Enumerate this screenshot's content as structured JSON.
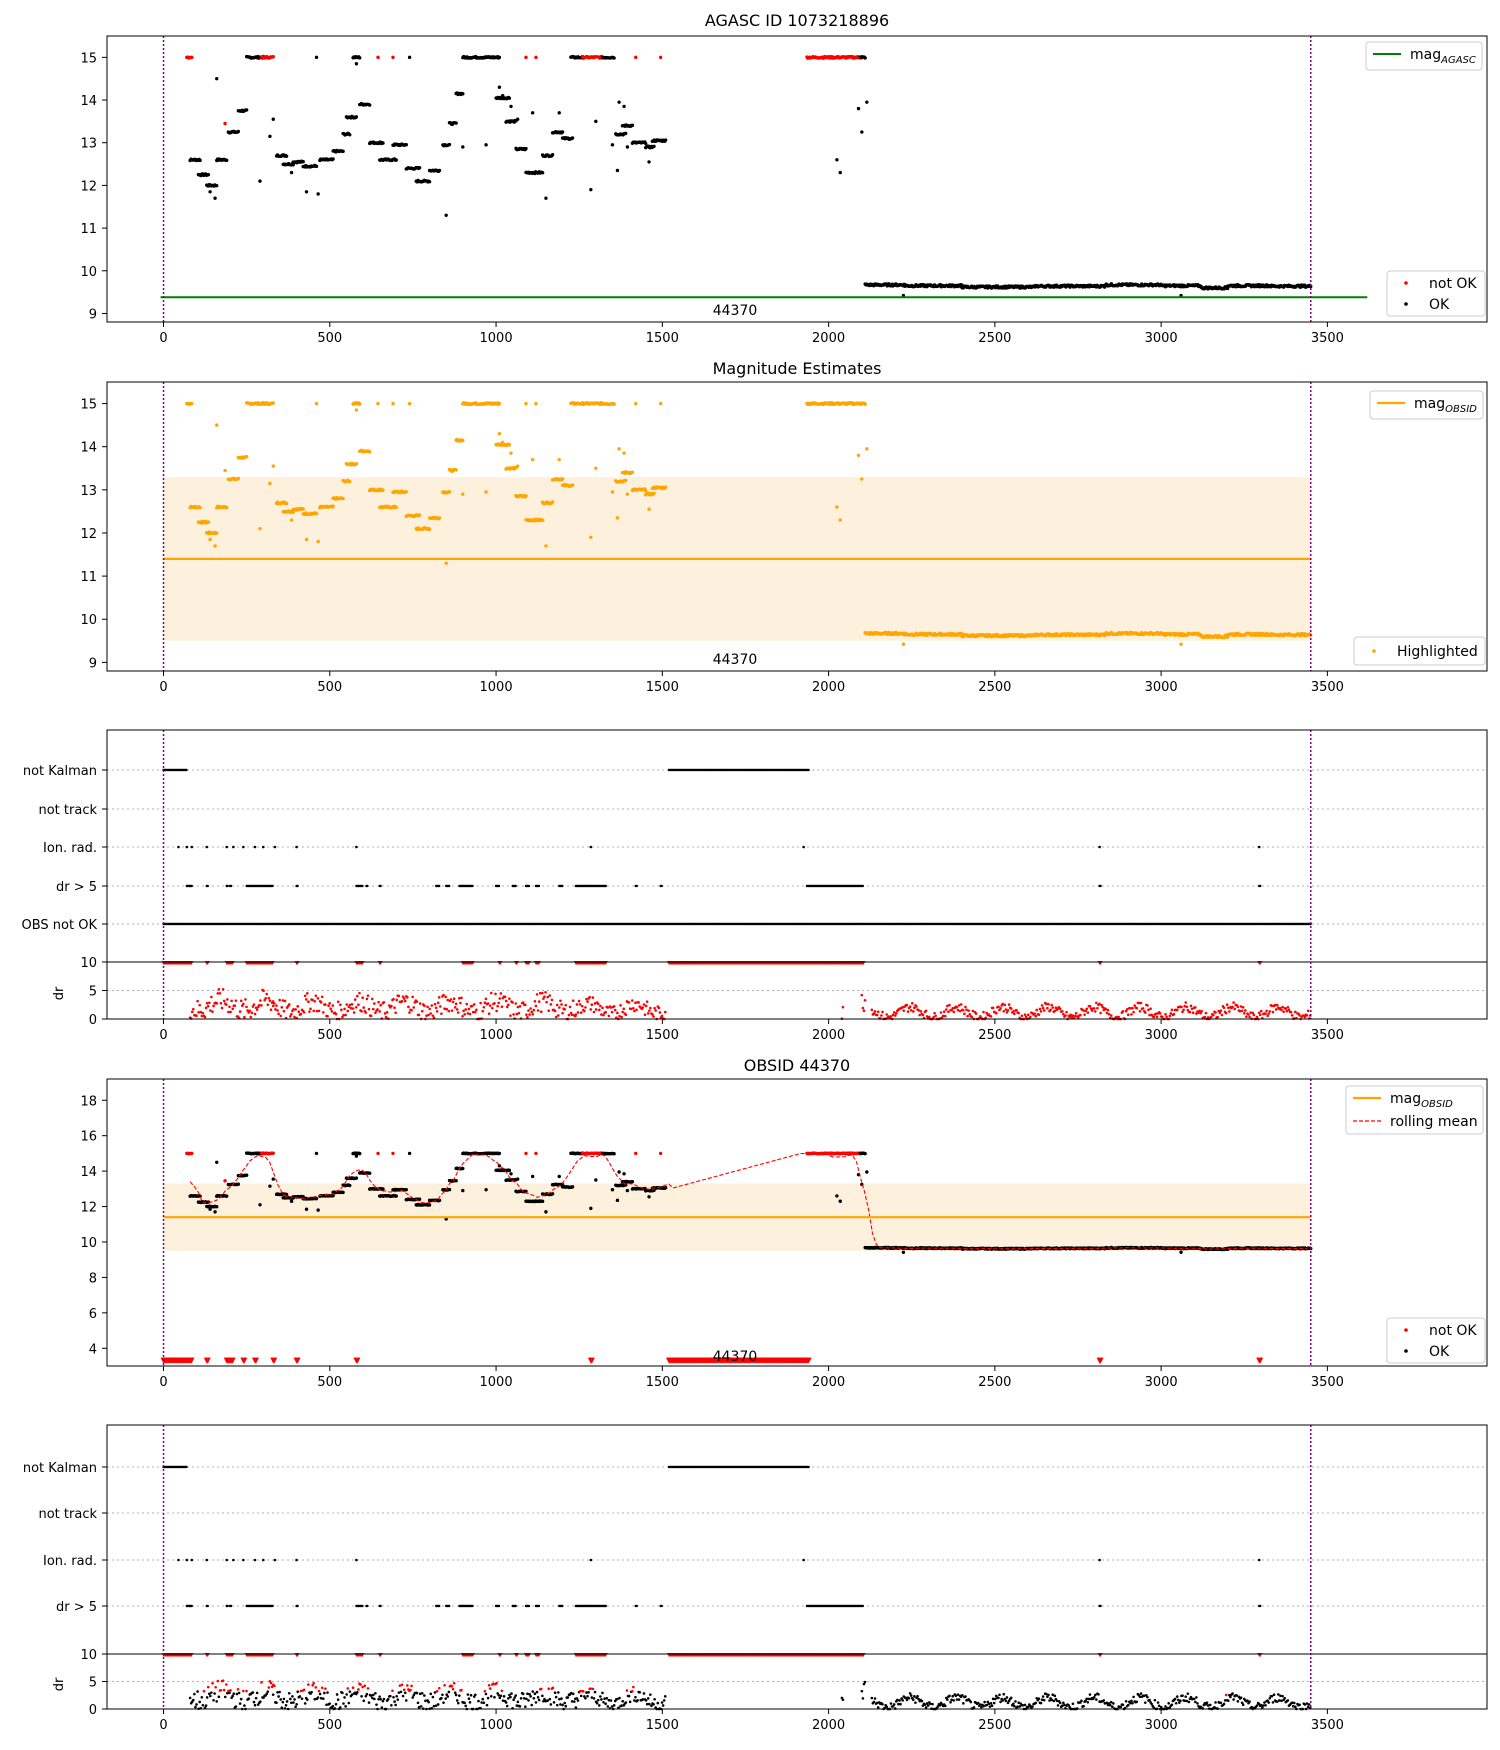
{
  "figure": {
    "panel1_title": "AGASC ID 1073218896",
    "panel2_title": "Magnitude Estimates",
    "panel4_title": "OBSID 44370",
    "obsid_label": "44370"
  },
  "legend": {
    "mag_agasc": "mag",
    "mag_agasc_sub": "AGASC",
    "mag_obsid": "mag",
    "mag_obsid_sub": "OBSID",
    "not_ok": "not OK",
    "ok": "OK",
    "highlighted": "Highlighted",
    "rolling_mean": "rolling mean"
  },
  "flag_rows": {
    "labels": [
      "not Kalman",
      "not track",
      "Ion. rad.",
      "dr > 5",
      "OBS not OK"
    ],
    "dr_label": "dr",
    "dr_ticks": [
      "0",
      "5",
      "10"
    ]
  },
  "colors": {
    "ok": "#000000",
    "not_ok": "#ff0000",
    "agasc_line": "#008000",
    "obsid": "#ffa500",
    "band": "#fdf1de",
    "boundary": "#800080"
  },
  "chart_data": [
    {
      "type": "scatter",
      "title": "AGASC ID 1073218896",
      "xlim": [
        -170,
        3980
      ],
      "ylim": [
        8.8,
        15.5
      ],
      "xticks": [
        "0",
        "500",
        "1000",
        "1500",
        "2000",
        "2500",
        "3000",
        "3500"
      ],
      "yticks": [
        "9",
        "10",
        "11",
        "12",
        "13",
        "14",
        "15"
      ],
      "mag_agasc": 9.38,
      "obsid_boundaries": [
        0,
        3450
      ],
      "segments": [
        {
          "x0": 70,
          "x1": 85,
          "y": 15.0,
          "status": "not_ok"
        },
        {
          "x0": 80,
          "x1": 110,
          "y": 12.6,
          "status": "ok"
        },
        {
          "x0": 105,
          "x1": 135,
          "y": 12.25,
          "status": "ok"
        },
        {
          "x0": 130,
          "x1": 160,
          "y": 12.0,
          "status": "ok"
        },
        {
          "x0": 160,
          "x1": 190,
          "y": 12.6,
          "status": "ok"
        },
        {
          "x0": 195,
          "x1": 225,
          "y": 13.25,
          "status": "ok"
        },
        {
          "x0": 225,
          "x1": 250,
          "y": 13.75,
          "status": "ok"
        },
        {
          "x0": 250,
          "x1": 300,
          "y": 15.0,
          "status": "ok"
        },
        {
          "x0": 295,
          "x1": 330,
          "y": 15.0,
          "status": "not_ok"
        },
        {
          "x0": 340,
          "x1": 370,
          "y": 12.7,
          "status": "ok"
        },
        {
          "x0": 360,
          "x1": 390,
          "y": 12.5,
          "status": "ok"
        },
        {
          "x0": 390,
          "x1": 420,
          "y": 12.55,
          "status": "ok"
        },
        {
          "x0": 420,
          "x1": 460,
          "y": 12.45,
          "status": "ok"
        },
        {
          "x0": 470,
          "x1": 510,
          "y": 12.6,
          "status": "ok"
        },
        {
          "x0": 510,
          "x1": 540,
          "y": 12.8,
          "status": "ok"
        },
        {
          "x0": 540,
          "x1": 560,
          "y": 13.2,
          "status": "ok"
        },
        {
          "x0": 550,
          "x1": 580,
          "y": 13.6,
          "status": "ok"
        },
        {
          "x0": 570,
          "x1": 590,
          "y": 15.0,
          "status": "ok"
        },
        {
          "x0": 590,
          "x1": 620,
          "y": 13.9,
          "status": "ok"
        },
        {
          "x0": 620,
          "x1": 660,
          "y": 13.0,
          "status": "ok"
        },
        {
          "x0": 650,
          "x1": 700,
          "y": 12.6,
          "status": "ok"
        },
        {
          "x0": 690,
          "x1": 730,
          "y": 12.95,
          "status": "ok"
        },
        {
          "x0": 730,
          "x1": 770,
          "y": 12.4,
          "status": "ok"
        },
        {
          "x0": 760,
          "x1": 800,
          "y": 12.1,
          "status": "ok"
        },
        {
          "x0": 800,
          "x1": 830,
          "y": 12.35,
          "status": "ok"
        },
        {
          "x0": 840,
          "x1": 860,
          "y": 12.95,
          "status": "ok"
        },
        {
          "x0": 860,
          "x1": 880,
          "y": 13.45,
          "status": "ok"
        },
        {
          "x0": 880,
          "x1": 900,
          "y": 14.15,
          "status": "ok"
        },
        {
          "x0": 900,
          "x1": 1010,
          "y": 15.0,
          "status": "ok"
        },
        {
          "x0": 1000,
          "x1": 1040,
          "y": 14.05,
          "status": "ok"
        },
        {
          "x0": 1030,
          "x1": 1060,
          "y": 13.5,
          "status": "ok"
        },
        {
          "x0": 1060,
          "x1": 1090,
          "y": 12.85,
          "status": "ok"
        },
        {
          "x0": 1090,
          "x1": 1140,
          "y": 12.3,
          "status": "ok"
        },
        {
          "x0": 1140,
          "x1": 1170,
          "y": 12.7,
          "status": "ok"
        },
        {
          "x0": 1170,
          "x1": 1200,
          "y": 13.25,
          "status": "ok"
        },
        {
          "x0": 1200,
          "x1": 1230,
          "y": 13.1,
          "status": "ok"
        },
        {
          "x0": 1225,
          "x1": 1260,
          "y": 15.0,
          "status": "ok"
        },
        {
          "x0": 1260,
          "x1": 1320,
          "y": 15.0,
          "status": "not_ok"
        },
        {
          "x0": 1320,
          "x1": 1355,
          "y": 15.0,
          "status": "ok"
        },
        {
          "x0": 1360,
          "x1": 1390,
          "y": 13.2,
          "status": "ok"
        },
        {
          "x0": 1380,
          "x1": 1410,
          "y": 13.4,
          "status": "ok"
        },
        {
          "x0": 1410,
          "x1": 1450,
          "y": 13.0,
          "status": "ok"
        },
        {
          "x0": 1450,
          "x1": 1475,
          "y": 12.9,
          "status": "ok"
        },
        {
          "x0": 1470,
          "x1": 1510,
          "y": 13.05,
          "status": "ok"
        },
        {
          "x0": 1935,
          "x1": 2100,
          "y": 15.0,
          "status": "not_ok"
        },
        {
          "x0": 2095,
          "x1": 2110,
          "y": 15.0,
          "status": "ok"
        },
        {
          "x0": 2110,
          "x1": 2230,
          "y": 9.67,
          "status": "ok"
        },
        {
          "x0": 2230,
          "x1": 2400,
          "y": 9.65,
          "status": "ok"
        },
        {
          "x0": 2400,
          "x1": 2620,
          "y": 9.62,
          "status": "ok"
        },
        {
          "x0": 2620,
          "x1": 2830,
          "y": 9.64,
          "status": "ok"
        },
        {
          "x0": 2830,
          "x1": 3000,
          "y": 9.67,
          "status": "ok"
        },
        {
          "x0": 3000,
          "x1": 3120,
          "y": 9.65,
          "status": "ok"
        },
        {
          "x0": 3120,
          "x1": 3200,
          "y": 9.6,
          "status": "ok"
        },
        {
          "x0": 3200,
          "x1": 3330,
          "y": 9.65,
          "status": "ok"
        },
        {
          "x0": 3330,
          "x1": 3450,
          "y": 9.64,
          "status": "ok"
        }
      ],
      "points": [
        [
          75,
          15.0,
          "not_ok"
        ],
        [
          160,
          14.5,
          "ok"
        ],
        [
          185,
          13.45,
          "not_ok"
        ],
        [
          140,
          11.85,
          "ok"
        ],
        [
          155,
          11.7,
          "ok"
        ],
        [
          290,
          12.1,
          "ok"
        ],
        [
          320,
          13.15,
          "ok"
        ],
        [
          330,
          13.55,
          "ok"
        ],
        [
          385,
          12.3,
          "ok"
        ],
        [
          430,
          11.85,
          "ok"
        ],
        [
          465,
          11.8,
          "ok"
        ],
        [
          460,
          15.0,
          "ok"
        ],
        [
          580,
          14.85,
          "ok"
        ],
        [
          645,
          15.0,
          "not_ok"
        ],
        [
          690,
          15.0,
          "not_ok"
        ],
        [
          740,
          15.0,
          "ok"
        ],
        [
          850,
          11.3,
          "ok"
        ],
        [
          900,
          12.9,
          "ok"
        ],
        [
          970,
          12.95,
          "ok"
        ],
        [
          1010,
          14.3,
          "ok"
        ],
        [
          1020,
          14.1,
          "ok"
        ],
        [
          1045,
          13.85,
          "ok"
        ],
        [
          1065,
          13.55,
          "ok"
        ],
        [
          1110,
          13.7,
          "ok"
        ],
        [
          1150,
          11.7,
          "ok"
        ],
        [
          1120,
          15.0,
          "not_ok"
        ],
        [
          1090,
          15.0,
          "not_ok"
        ],
        [
          1190,
          13.7,
          "ok"
        ],
        [
          1285,
          11.9,
          "ok"
        ],
        [
          1300,
          13.5,
          "ok"
        ],
        [
          1350,
          12.95,
          "ok"
        ],
        [
          1365,
          12.35,
          "ok"
        ],
        [
          1370,
          13.95,
          "ok"
        ],
        [
          1385,
          13.85,
          "ok"
        ],
        [
          1395,
          12.9,
          "ok"
        ],
        [
          1420,
          15.0,
          "not_ok"
        ],
        [
          1495,
          15.0,
          "not_ok"
        ],
        [
          1460,
          12.55,
          "ok"
        ],
        [
          2025,
          12.6,
          "ok"
        ],
        [
          2035,
          12.3,
          "ok"
        ],
        [
          2090,
          13.8,
          "ok"
        ],
        [
          2100,
          13.25,
          "ok"
        ],
        [
          2115,
          13.95,
          "ok"
        ],
        [
          2225,
          9.42,
          "ok"
        ],
        [
          3060,
          9.42,
          "ok"
        ]
      ]
    },
    {
      "type": "scatter",
      "title": "Magnitude Estimates",
      "xlim": [
        -170,
        3980
      ],
      "ylim": [
        8.8,
        15.5
      ],
      "mag_obsid": 11.4,
      "mag_obsid_band": [
        9.5,
        13.3
      ],
      "series": [
        {
          "name": "Highlighted",
          "note": "same points as panel 1, all in orange"
        }
      ]
    },
    {
      "type": "scatter",
      "title": "",
      "xlim": [
        -170,
        3980
      ],
      "flags": {
        "not Kalman": [
          [
            0,
            70
          ],
          [
            1520,
            1940
          ]
        ],
        "not track": [],
        "Ion. rad.": [
          45,
          70,
          85,
          130,
          190,
          210,
          240,
          275,
          300,
          335,
          400,
          580,
          1285,
          1925,
          2815,
          3295
        ],
        "dr > 5": [
          [
            70,
            85
          ],
          [
            130,
            135
          ],
          [
            190,
            195
          ],
          [
            200,
            205
          ],
          [
            250,
            330
          ],
          [
            400,
            405
          ],
          [
            580,
            600
          ],
          [
            610,
            615
          ],
          [
            650,
            655
          ],
          [
            820,
            830
          ],
          [
            850,
            860
          ],
          [
            890,
            930
          ],
          [
            1000,
            1010
          ],
          [
            1050,
            1060
          ],
          [
            1090,
            1100
          ],
          [
            1120,
            1130
          ],
          [
            1190,
            1200
          ],
          [
            1240,
            1330
          ],
          [
            1420,
            1425
          ],
          [
            1495,
            1500
          ],
          [
            1935,
            2105
          ],
          [
            2815,
            2820
          ],
          [
            3295,
            3300
          ]
        ],
        "OBS not OK": [
          [
            0,
            3450
          ]
        ]
      },
      "dr_ylim": [
        0,
        10
      ],
      "dr_limit": 5
    },
    {
      "type": "scatter",
      "title": "OBSID 44370",
      "xlim": [
        -170,
        3980
      ],
      "ylim": [
        3,
        19.2
      ],
      "yticks": [
        "4",
        "6",
        "8",
        "10",
        "12",
        "14",
        "16",
        "18"
      ],
      "mag_obsid": 11.4,
      "mag_obsid_band": [
        9.5,
        13.3
      ],
      "series": [
        {
          "name": "not OK"
        },
        {
          "name": "OK"
        },
        {
          "name": "rolling mean"
        }
      ],
      "lower_markers_y": 3.3
    },
    {
      "type": "scatter",
      "title": "",
      "xlim": [
        -170,
        3980
      ],
      "dr_ylim": [
        0,
        10
      ]
    }
  ]
}
